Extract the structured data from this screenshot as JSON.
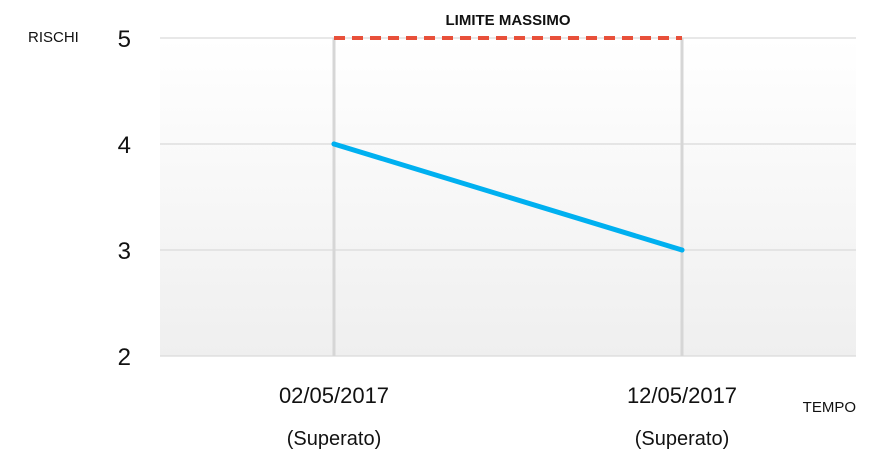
{
  "chart_data": {
    "type": "line",
    "ylabel": "RISCHI",
    "xlabel": "TEMPO",
    "ylim": [
      2,
      5
    ],
    "yticks": [
      2,
      3,
      4,
      5
    ],
    "categories": [
      "02/05/2017",
      "12/05/2017"
    ],
    "category_notes": [
      "(Superato)",
      "(Superato)"
    ],
    "series": [
      {
        "values": [
          4,
          3
        ],
        "color": "#00b0f0"
      }
    ],
    "reference_line": {
      "label": "LIMITE MASSIMO",
      "value": 5,
      "color": "#e8503a",
      "style": "dashed"
    },
    "grid": true,
    "vertical_drop_lines": true
  }
}
